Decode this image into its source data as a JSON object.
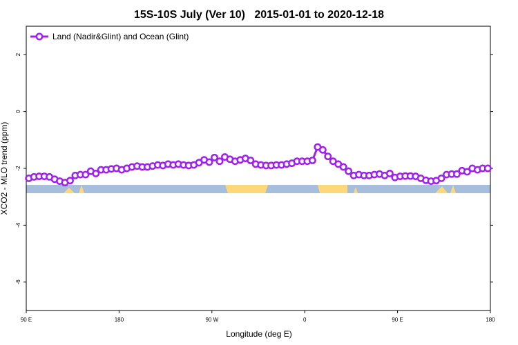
{
  "chart_data": {
    "type": "line",
    "title": "15S-10S July (Ver 10)   2015-01-01 to 2020-12-18",
    "xlabel": "Longitude (deg E)",
    "ylabel": "XCO2 - MLO trend (ppm)",
    "xlim": [
      90,
      540
    ],
    "ylim": [
      -7,
      3
    ],
    "xticks": [
      {
        "value": 90,
        "label": "90 E"
      },
      {
        "value": 180,
        "label": "180"
      },
      {
        "value": 270,
        "label": "90 W"
      },
      {
        "value": 360,
        "label": "0"
      },
      {
        "value": 450,
        "label": "90 E"
      },
      {
        "value": 540,
        "label": "180"
      }
    ],
    "yticks": [
      2,
      0,
      -2,
      -4,
      -6
    ],
    "legend": "top-left",
    "x": [
      92.5,
      97.5,
      102.5,
      107.5,
      112.5,
      117.5,
      122.5,
      127.5,
      132.5,
      137.5,
      142.5,
      147.5,
      152.5,
      157.5,
      162.5,
      167.5,
      172.5,
      177.5,
      182.5,
      187.5,
      192.5,
      197.5,
      202.5,
      207.5,
      212.5,
      217.5,
      222.5,
      227.5,
      232.5,
      237.5,
      242.5,
      247.5,
      252.5,
      257.5,
      262.5,
      267.5,
      272.5,
      277.5,
      282.5,
      287.5,
      292.5,
      297.5,
      302.5,
      307.5,
      312.5,
      317.5,
      322.5,
      327.5,
      332.5,
      337.5,
      342.5,
      347.5,
      352.5,
      357.5,
      362.5,
      367.5,
      372.5,
      377.5,
      382.5,
      387.5,
      392.5,
      397.5,
      402.5,
      407.5,
      412.5,
      417.5,
      422.5,
      427.5,
      432.5,
      437.5,
      442.5,
      447.5,
      452.5,
      457.5,
      462.5,
      467.5,
      472.5,
      477.5,
      482.5,
      487.5,
      492.5,
      497.5,
      502.5,
      507.5,
      512.5,
      517.5,
      522.5,
      527.5,
      532.5,
      537.5
    ],
    "series": [
      {
        "name": "Land (Nadir&Glint) and Ocean (Glint)",
        "color": "#a020f0",
        "values": [
          -2.35,
          -2.3,
          -2.28,
          -2.28,
          -2.3,
          -2.38,
          -2.45,
          -2.5,
          -2.43,
          -2.25,
          -2.22,
          -2.22,
          -2.1,
          -2.18,
          -2.05,
          -2.05,
          -2.02,
          -2.0,
          -2.05,
          -2.0,
          -1.95,
          -1.92,
          -1.95,
          -1.95,
          -1.92,
          -1.88,
          -1.9,
          -1.85,
          -1.88,
          -1.85,
          -1.88,
          -1.9,
          -1.88,
          -1.8,
          -1.7,
          -1.78,
          -1.62,
          -1.75,
          -1.6,
          -1.68,
          -1.75,
          -1.7,
          -1.65,
          -1.72,
          -1.85,
          -1.88,
          -1.9,
          -1.9,
          -1.88,
          -1.88,
          -1.85,
          -1.82,
          -1.75,
          -1.75,
          -1.75,
          -1.72,
          -1.25,
          -1.35,
          -1.58,
          -1.75,
          -1.85,
          -1.95,
          -2.1,
          -2.25,
          -2.22,
          -2.25,
          -2.25,
          -2.22,
          -2.2,
          -2.25,
          -2.18,
          -2.32,
          -2.28,
          -2.27,
          -2.27,
          -2.28,
          -2.35,
          -2.42,
          -2.45,
          -2.43,
          -2.35,
          -2.22,
          -2.2,
          -2.2,
          -2.08,
          -2.12,
          -2.0,
          -2.05,
          -2.0,
          -2.0
        ]
      }
    ]
  }
}
